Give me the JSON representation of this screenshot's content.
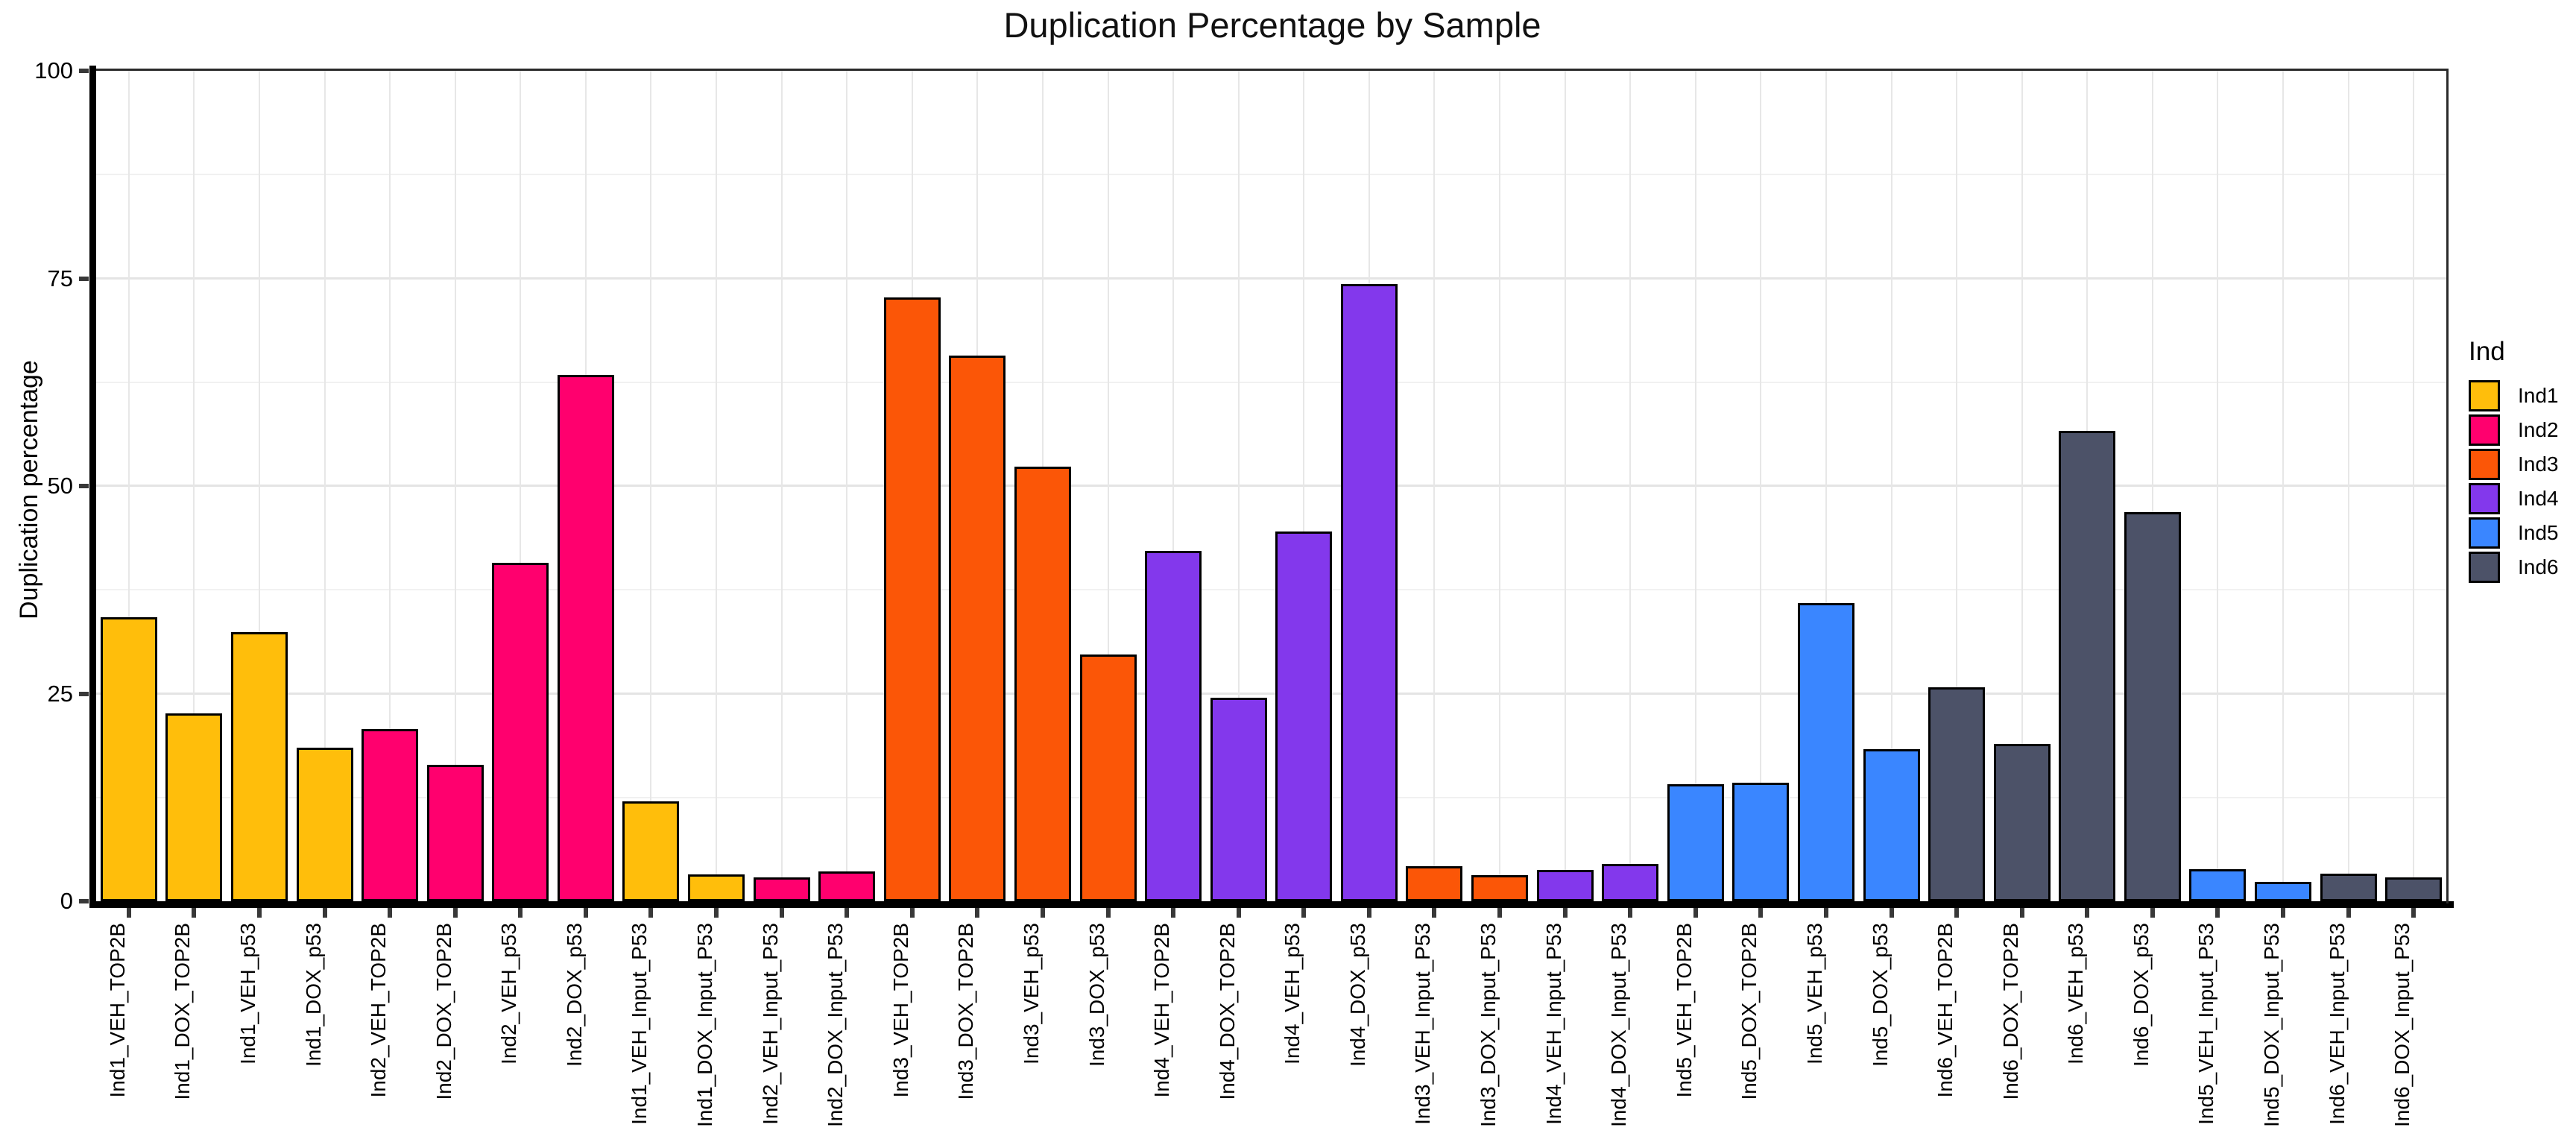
{
  "title": "Duplication Percentage by Sample",
  "y_axis": {
    "label": "Duplication percentage",
    "tick_labels": [
      "0",
      "25",
      "50",
      "75",
      "100"
    ]
  },
  "legend": {
    "title": "Ind",
    "entries": [
      {
        "label": "Ind1",
        "color": "#FFBE0B"
      },
      {
        "label": "Ind2",
        "color": "#FF006E"
      },
      {
        "label": "Ind3",
        "color": "#FB5607"
      },
      {
        "label": "Ind4",
        "color": "#8338EC"
      },
      {
        "label": "Ind5",
        "color": "#3A86FF"
      },
      {
        "label": "Ind6",
        "color": "#4C5268"
      }
    ]
  },
  "chart_data": {
    "type": "bar",
    "title": "Duplication Percentage by Sample",
    "xlabel": "",
    "ylabel": "Duplication percentage",
    "ylim": [
      0,
      100
    ],
    "yticks": [
      0,
      25,
      50,
      75,
      100
    ],
    "minor_gridlines": [
      12.5,
      37.5,
      62.5,
      87.5
    ],
    "grid": true,
    "legend_position": "right",
    "legend_title": "Ind",
    "palette": {
      "Ind1": "#FFBE0B",
      "Ind2": "#FF006E",
      "Ind3": "#FB5607",
      "Ind4": "#8338EC",
      "Ind5": "#3A86FF",
      "Ind6": "#4C5268"
    },
    "categories": [
      "Ind1_VEH_TOP2B",
      "Ind1_DOX_TOP2B",
      "Ind1_VEH_p53",
      "Ind1_DOX_p53",
      "Ind2_VEH_TOP2B",
      "Ind2_DOX_TOP2B",
      "Ind2_VEH_p53",
      "Ind2_DOX_p53",
      "Ind1_VEH_Input_P53",
      "Ind1_DOX_Input_P53",
      "Ind2_VEH_Input_P53",
      "Ind2_DOX_Input_P53",
      "Ind3_VEH_TOP2B",
      "Ind3_DOX_TOP2B",
      "Ind3_VEH_p53",
      "Ind3_DOX_p53",
      "Ind4_VEH_TOP2B",
      "Ind4_DOX_TOP2B",
      "Ind4_VEH_p53",
      "Ind4_DOX_p53",
      "Ind3_VEH_Input_P53",
      "Ind3_DOX_Input_P53",
      "Ind4_VEH_Input_P53",
      "Ind4_DOX_Input_P53",
      "Ind5_VEH_TOP2B",
      "Ind5_DOX_TOP2B",
      "Ind5_VEH_p53",
      "Ind5_DOX_p53",
      "Ind6_VEH_TOP2B",
      "Ind6_DOX_TOP2B",
      "Ind6_VEH_p53",
      "Ind6_DOX_p53",
      "Ind5_VEH_Input_P53",
      "Ind5_DOX_Input_P53",
      "Ind6_VEH_Input_P53",
      "Ind6_DOX_Input_P53"
    ],
    "groups": [
      "Ind1",
      "Ind1",
      "Ind1",
      "Ind1",
      "Ind2",
      "Ind2",
      "Ind2",
      "Ind2",
      "Ind1",
      "Ind1",
      "Ind2",
      "Ind2",
      "Ind3",
      "Ind3",
      "Ind3",
      "Ind3",
      "Ind4",
      "Ind4",
      "Ind4",
      "Ind4",
      "Ind3",
      "Ind3",
      "Ind4",
      "Ind4",
      "Ind5",
      "Ind5",
      "Ind5",
      "Ind5",
      "Ind6",
      "Ind6",
      "Ind6",
      "Ind6",
      "Ind5",
      "Ind5",
      "Ind6",
      "Ind6"
    ],
    "values": [
      34.2,
      22.6,
      32.4,
      18.5,
      20.7,
      16.4,
      40.8,
      63.4,
      12.0,
      3.2,
      2.9,
      3.6,
      72.7,
      65.7,
      52.3,
      29.7,
      42.2,
      24.5,
      44.5,
      74.3,
      4.2,
      3.1,
      3.8,
      4.5,
      14.1,
      14.3,
      35.9,
      18.3,
      25.8,
      18.9,
      56.6,
      46.9,
      3.9,
      2.3,
      3.3,
      2.9
    ]
  }
}
